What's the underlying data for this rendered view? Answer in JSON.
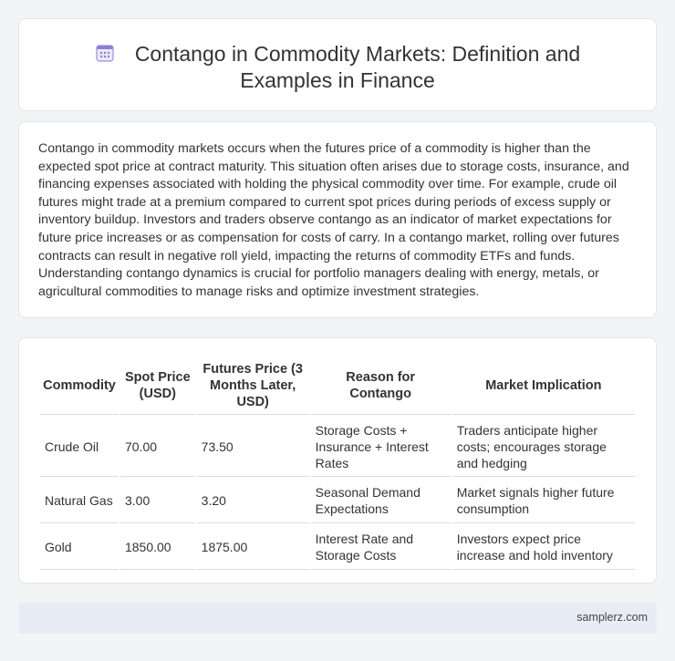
{
  "header": {
    "icon": "calendar-grid-icon",
    "title_line1": "Contango in Commodity Markets: Definition and",
    "title_line2": "Examples in Finance"
  },
  "description": "Contango in commodity markets occurs when the futures price of a commodity is higher than the expected spot price at contract maturity. This situation often arises due to storage costs, insurance, and financing expenses associated with holding the physical commodity over time. For example, crude oil futures might trade at a premium compared to current spot prices during periods of excess supply or inventory buildup. Investors and traders observe contango as an indicator of market expectations for future price increases or as compensation for costs of carry. In a contango market, rolling over futures contracts can result in negative roll yield, impacting the returns of commodity ETFs and funds. Understanding contango dynamics is crucial for portfolio managers dealing with energy, metals, or agricultural commodities to manage risks and optimize investment strategies.",
  "table": {
    "headers": [
      "Commodity",
      "Spot Price (USD)",
      "Futures Price (3 Months Later, USD)",
      "Reason for Contango",
      "Market Implication"
    ],
    "rows": [
      [
        "Crude Oil",
        "70.00",
        "73.50",
        "Storage Costs + Insurance + Interest Rates",
        "Traders anticipate higher costs; encourages storage and hedging"
      ],
      [
        "Natural Gas",
        "3.00",
        "3.20",
        "Seasonal Demand Expectations",
        "Market signals higher future consumption"
      ],
      [
        "Gold",
        "1850.00",
        "1875.00",
        "Interest Rate and Storage Costs",
        "Investors expect price increase and hold inventory"
      ]
    ]
  },
  "footer": {
    "site": "samplerz.com"
  },
  "colors": {
    "icon_accent": "#8b7fd6",
    "footer_bg": "#e8edf5"
  }
}
